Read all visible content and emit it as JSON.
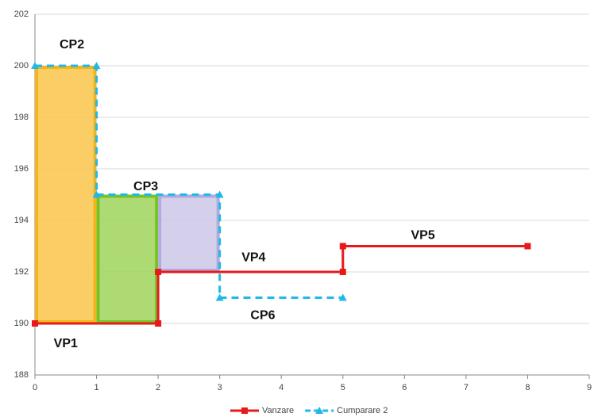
{
  "chart_data": {
    "type": "line",
    "xlim": [
      0,
      9
    ],
    "xticks": [
      0,
      1,
      2,
      3,
      4,
      5,
      6,
      7,
      8,
      9
    ],
    "ylim": [
      188,
      202
    ],
    "yticks": [
      188,
      190,
      192,
      194,
      196,
      198,
      200,
      202
    ],
    "grid": true,
    "legend": "bottom",
    "series": [
      {
        "name": "Vanzare",
        "color": "#e8191b",
        "dashed": false,
        "marker": "square",
        "x": [
          0,
          2,
          2,
          5,
          5,
          8
        ],
        "values": [
          190,
          190,
          192,
          192,
          193,
          193
        ]
      },
      {
        "name": "Cumparare 2",
        "color": "#1fb8e8",
        "dashed": true,
        "marker": "triangle",
        "x": [
          0,
          1,
          1,
          3,
          3,
          5
        ],
        "values": [
          200,
          200,
          195,
          195,
          191,
          191
        ]
      }
    ],
    "regions": [
      {
        "x0": 0,
        "x1": 1,
        "y0": 190,
        "y1": 200,
        "color": "#f9c64a",
        "stroke": "#f3b51a"
      },
      {
        "x0": 1,
        "x1": 2,
        "y0": 190,
        "y1": 195,
        "color": "#9fd45a",
        "stroke": "#76c326"
      },
      {
        "x0": 2,
        "x1": 3,
        "y0": 192,
        "y1": 195,
        "color": "#cdc7e8",
        "stroke": "#b2aadd"
      }
    ],
    "annotations": [
      {
        "text": "CP2",
        "x": 0.6,
        "y": 200.8
      },
      {
        "text": "CP3",
        "x": 1.8,
        "y": 195.3
      },
      {
        "text": "VP4",
        "x": 3.55,
        "y": 192.55
      },
      {
        "text": "VP5",
        "x": 6.3,
        "y": 193.4
      },
      {
        "text": "CP6",
        "x": 3.7,
        "y": 190.3
      },
      {
        "text": "VP1",
        "x": 0.5,
        "y": 189.2
      }
    ]
  }
}
